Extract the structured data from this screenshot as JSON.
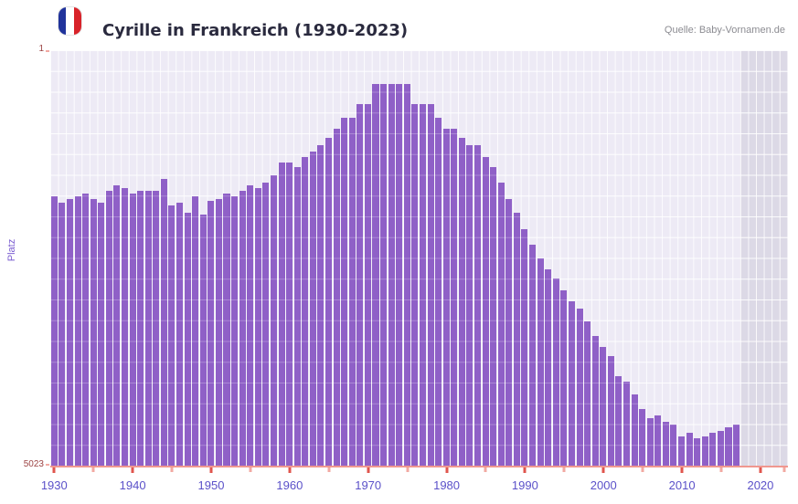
{
  "header": {
    "title": "Cyrille in Frankreich (1930-2023)",
    "source": "Quelle: Baby-Vornamen.de",
    "flag": {
      "name": "france-flag-icon",
      "colors": [
        "#20339b",
        "#ffffff",
        "#d8232a"
      ]
    }
  },
  "chart_data": {
    "type": "bar",
    "title": "Cyrille in Frankreich (1930-2023)",
    "xlabel": "",
    "ylabel": "Platz",
    "y_axis": {
      "top_label": "1",
      "bottom_label": "5023",
      "min": 1,
      "max": 5023,
      "scale": "log",
      "inverted": true
    },
    "x_tick_labels": [
      "1930",
      "1940",
      "1950",
      "1960",
      "1970",
      "1980",
      "1990",
      "2000",
      "2010",
      "2020"
    ],
    "no_data_years": {
      "from": 2018,
      "to": 2023
    },
    "grid": true,
    "legend": "none",
    "years": [
      1930,
      1931,
      1932,
      1933,
      1934,
      1935,
      1936,
      1937,
      1938,
      1939,
      1940,
      1941,
      1942,
      1943,
      1944,
      1945,
      1946,
      1947,
      1948,
      1949,
      1950,
      1951,
      1952,
      1953,
      1954,
      1955,
      1956,
      1957,
      1958,
      1959,
      1960,
      1961,
      1962,
      1963,
      1964,
      1965,
      1966,
      1967,
      1968,
      1969,
      1970,
      1971,
      1972,
      1973,
      1974,
      1975,
      1976,
      1977,
      1978,
      1979,
      1980,
      1981,
      1982,
      1983,
      1984,
      1985,
      1986,
      1987,
      1988,
      1989,
      1990,
      1991,
      1992,
      1993,
      1994,
      1995,
      1996,
      1997,
      1998,
      1999,
      2000,
      2001,
      2002,
      2003,
      2004,
      2005,
      2006,
      2007,
      2008,
      2009,
      2010,
      2011,
      2012,
      2013,
      2014,
      2015,
      2016,
      2017,
      2018,
      2019,
      2020,
      2021,
      2022,
      2023
    ],
    "ranks": [
      20,
      23,
      21,
      20,
      19,
      21,
      23,
      18,
      16,
      17,
      19,
      18,
      18,
      18,
      14,
      24,
      23,
      28,
      20,
      29,
      22,
      21,
      19,
      20,
      18,
      16,
      17,
      15,
      13,
      10,
      10,
      11,
      9,
      8,
      7,
      6,
      5,
      4,
      4,
      3,
      3,
      2,
      2,
      2,
      2,
      2,
      3,
      3,
      3,
      4,
      5,
      5,
      6,
      7,
      7,
      9,
      11,
      15,
      21,
      28,
      39,
      54,
      71,
      89,
      108,
      138,
      172,
      200,
      261,
      352,
      439,
      530,
      804,
      898,
      1169,
      1578,
      1901,
      1791,
      2051,
      2163,
      2767,
      2564,
      2864,
      2767,
      2564,
      2455,
      2291,
      2163,
      null,
      null,
      null,
      null,
      null,
      null
    ],
    "colors": {
      "bar": "#8f60c7",
      "plot_bg": "#edeaf5",
      "no_data": "#dcd9e6",
      "axis_line": "#f0978f",
      "tick_major": "#e0564e",
      "tick_minor": "#f2a9a2",
      "year_label": "#5b51c9",
      "rank_label": "#9c4343",
      "y_axis_title": "#7a5cd0"
    }
  }
}
